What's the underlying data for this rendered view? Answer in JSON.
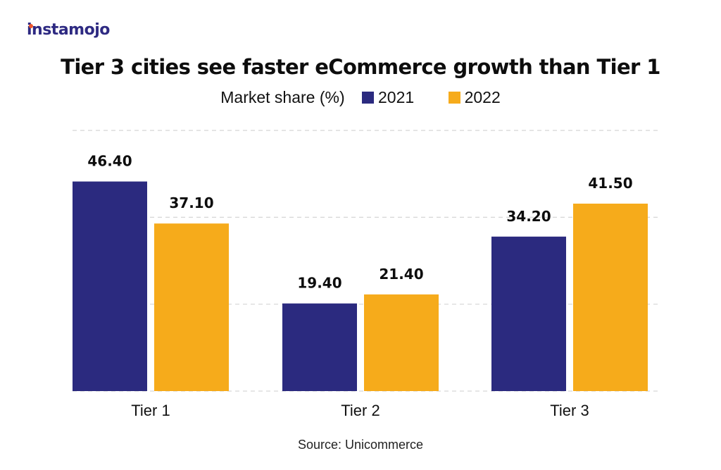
{
  "brand": {
    "logo_text": "instamojo"
  },
  "chart_data": {
    "type": "bar",
    "title": "Tier 3 cities see faster eCommerce growth than Tier 1",
    "subtitle": "Market share (%)",
    "categories": [
      "Tier 1",
      "Tier 2",
      "Tier 3"
    ],
    "series": [
      {
        "name": "2021",
        "color": "#2b2a7f",
        "values": [
          46.4,
          19.4,
          34.2
        ],
        "labels": [
          "46.40",
          "19.40",
          "34.20"
        ]
      },
      {
        "name": "2022",
        "color": "#f6ab1b",
        "values": [
          37.1,
          21.4,
          41.5
        ],
        "labels": [
          "37.10",
          "21.40",
          "41.50"
        ]
      }
    ],
    "xlabel": "",
    "ylabel": "",
    "ylim": [
      0,
      58
    ],
    "grid": true,
    "legend_position": "top-center",
    "source": "Source: Unicommerce"
  }
}
